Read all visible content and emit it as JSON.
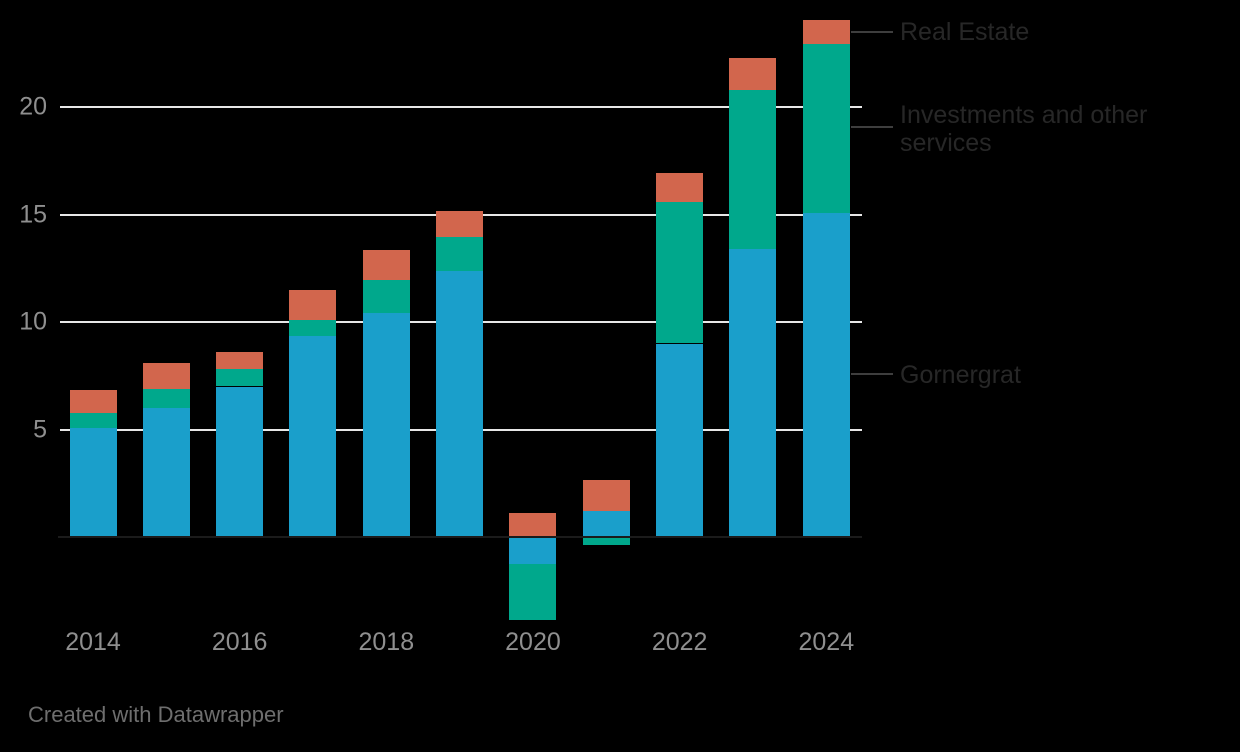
{
  "attribution": "Created with Datawrapper",
  "colors": {
    "background": "#000000",
    "gridline": "#e7e7e7",
    "axis_baseline": "#1b1b1b",
    "tick_label": "#8f8f8f",
    "series_label": "#272727",
    "leader_line": "#3e3e3e",
    "attribution_text": "#6e6e6e",
    "gornergrat": "#1a9fcb",
    "investments": "#00a88c",
    "real_estate": "#d2664d"
  },
  "chart_data": {
    "type": "bar",
    "stacked": true,
    "title": "",
    "xlabel": "",
    "ylabel": "",
    "x": [
      2014,
      2015,
      2016,
      2017,
      2018,
      2019,
      2020,
      2021,
      2022,
      2023,
      2024
    ],
    "x_tick_labels": [
      "2014",
      "2016",
      "2018",
      "2020",
      "2022",
      "2024"
    ],
    "y_ticks": [
      5,
      10,
      15,
      20
    ],
    "ylim": [
      -4.2,
      24.5
    ],
    "grid": true,
    "legend_position": "right-direct-labels",
    "series": [
      {
        "name": "Gornergrat",
        "color": "#1a9fcb",
        "values": [
          5.05,
          6.0,
          7.0,
          9.35,
          10.4,
          12.35,
          -1.25,
          1.2,
          9.0,
          13.4,
          15.05
        ]
      },
      {
        "name": "Investments and other services",
        "color": "#00a88c",
        "values": [
          0.7,
          0.9,
          0.8,
          0.75,
          1.55,
          1.6,
          -2.6,
          -0.35,
          6.6,
          7.4,
          7.9
        ]
      },
      {
        "name": "Real Estate",
        "color": "#d2664d",
        "values": [
          1.1,
          1.2,
          0.8,
          1.4,
          1.4,
          1.2,
          1.1,
          1.45,
          1.35,
          1.5,
          1.1
        ]
      }
    ]
  }
}
